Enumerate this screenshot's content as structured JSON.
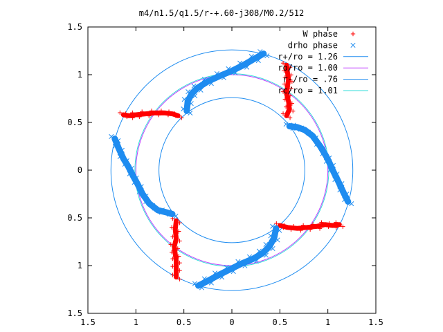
{
  "chart_data": {
    "type": "scatter",
    "title": "m4/n1.5/q1.5/r-+.60-j308/M0.2/512",
    "xlabel": "",
    "ylabel": "",
    "xlim": [
      -1.5,
      1.5
    ],
    "ylim": [
      -1.5,
      1.5
    ],
    "x_ticks": [
      {
        "value": -1.5,
        "label": "1.5"
      },
      {
        "value": -1.0,
        "label": "1"
      },
      {
        "value": -0.5,
        "label": "0.5"
      },
      {
        "value": 0.0,
        "label": "0"
      },
      {
        "value": 0.5,
        "label": "0.5"
      },
      {
        "value": 1.0,
        "label": "1"
      },
      {
        "value": 1.5,
        "label": "1.5"
      }
    ],
    "y_ticks": [
      {
        "value": 1.5,
        "label": "1.5"
      },
      {
        "value": 1.0,
        "label": "1"
      },
      {
        "value": 0.5,
        "label": "0.5"
      },
      {
        "value": 0.0,
        "label": "0"
      },
      {
        "value": -0.5,
        "label": "0.5"
      },
      {
        "value": -1.0,
        "label": "1"
      },
      {
        "value": -1.5,
        "label": "1.5"
      }
    ],
    "grid": false,
    "legend_position": "top-right",
    "series": [
      {
        "name": "W phase",
        "kind": "points",
        "marker": "+",
        "color": "#ff0000",
        "segments": [
          [
            [
              0.57,
              1.1
            ],
            [
              0.58,
              1.02
            ],
            [
              0.59,
              0.95
            ],
            [
              0.58,
              0.88
            ],
            [
              0.57,
              0.8
            ],
            [
              0.59,
              0.72
            ],
            [
              0.6,
              0.64
            ],
            [
              0.57,
              0.57
            ]
          ],
          [
            [
              -0.56,
              0.57
            ],
            [
              -0.62,
              0.59
            ],
            [
              -0.7,
              0.6
            ],
            [
              -0.8,
              0.6
            ],
            [
              -0.9,
              0.59
            ],
            [
              -1.0,
              0.58
            ],
            [
              -1.07,
              0.57
            ],
            [
              -1.13,
              0.58
            ]
          ],
          [
            [
              -0.58,
              -0.53
            ],
            [
              -0.59,
              -0.62
            ],
            [
              -0.58,
              -0.72
            ],
            [
              -0.6,
              -0.8
            ],
            [
              -0.59,
              -0.88
            ],
            [
              -0.58,
              -0.95
            ],
            [
              -0.58,
              -1.03
            ],
            [
              -0.58,
              -1.12
            ]
          ],
          [
            [
              0.5,
              -0.58
            ],
            [
              0.58,
              -0.6
            ],
            [
              0.68,
              -0.61
            ],
            [
              0.78,
              -0.6
            ],
            [
              0.88,
              -0.59
            ],
            [
              0.97,
              -0.57
            ],
            [
              1.05,
              -0.58
            ],
            [
              1.12,
              -0.57
            ]
          ]
        ]
      },
      {
        "name": "drho phase",
        "kind": "points",
        "marker": "x",
        "color": "#1e8cf0",
        "segments": [
          [
            [
              -0.47,
              0.62
            ],
            [
              -0.46,
              0.72
            ],
            [
              -0.42,
              0.8
            ],
            [
              -0.36,
              0.86
            ],
            [
              -0.25,
              0.93
            ],
            [
              -0.12,
              0.99
            ],
            [
              0.0,
              1.04
            ],
            [
              0.12,
              1.1
            ],
            [
              0.24,
              1.17
            ],
            [
              0.33,
              1.22
            ]
          ],
          [
            [
              0.6,
              0.46
            ],
            [
              0.68,
              0.45
            ],
            [
              0.76,
              0.42
            ],
            [
              0.84,
              0.36
            ],
            [
              0.92,
              0.25
            ],
            [
              0.98,
              0.15
            ],
            [
              1.02,
              0.07
            ],
            [
              1.06,
              -0.02
            ],
            [
              1.11,
              -0.12
            ],
            [
              1.16,
              -0.23
            ],
            [
              1.21,
              -0.33
            ]
          ],
          [
            [
              0.46,
              -0.61
            ],
            [
              0.44,
              -0.71
            ],
            [
              0.39,
              -0.8
            ],
            [
              0.32,
              -0.87
            ],
            [
              0.22,
              -0.93
            ],
            [
              0.1,
              -0.98
            ],
            [
              -0.02,
              -1.04
            ],
            [
              -0.14,
              -1.1
            ],
            [
              -0.25,
              -1.16
            ],
            [
              -0.35,
              -1.21
            ]
          ],
          [
            [
              -0.62,
              -0.46
            ],
            [
              -0.69,
              -0.44
            ],
            [
              -0.77,
              -0.42
            ],
            [
              -0.86,
              -0.35
            ],
            [
              -0.93,
              -0.25
            ],
            [
              -0.98,
              -0.15
            ],
            [
              -1.03,
              -0.06
            ],
            [
              -1.08,
              0.04
            ],
            [
              -1.13,
              0.12
            ],
            [
              -1.18,
              0.23
            ],
            [
              -1.22,
              0.33
            ]
          ]
        ]
      },
      {
        "name": "r+/ro = 1.26",
        "kind": "circle",
        "radius": 1.26,
        "color": "#1e8cf0"
      },
      {
        "name": "ro/ro = 1.00",
        "kind": "circle",
        "radius": 1.0,
        "color": "#c040ff"
      },
      {
        "name": "r-/ro = .76",
        "kind": "circle",
        "radius": 0.76,
        "color": "#1e8cf0"
      },
      {
        "name": "rc/ro = 1.01",
        "kind": "circle",
        "radius": 1.01,
        "color": "#30ddd8"
      }
    ]
  }
}
